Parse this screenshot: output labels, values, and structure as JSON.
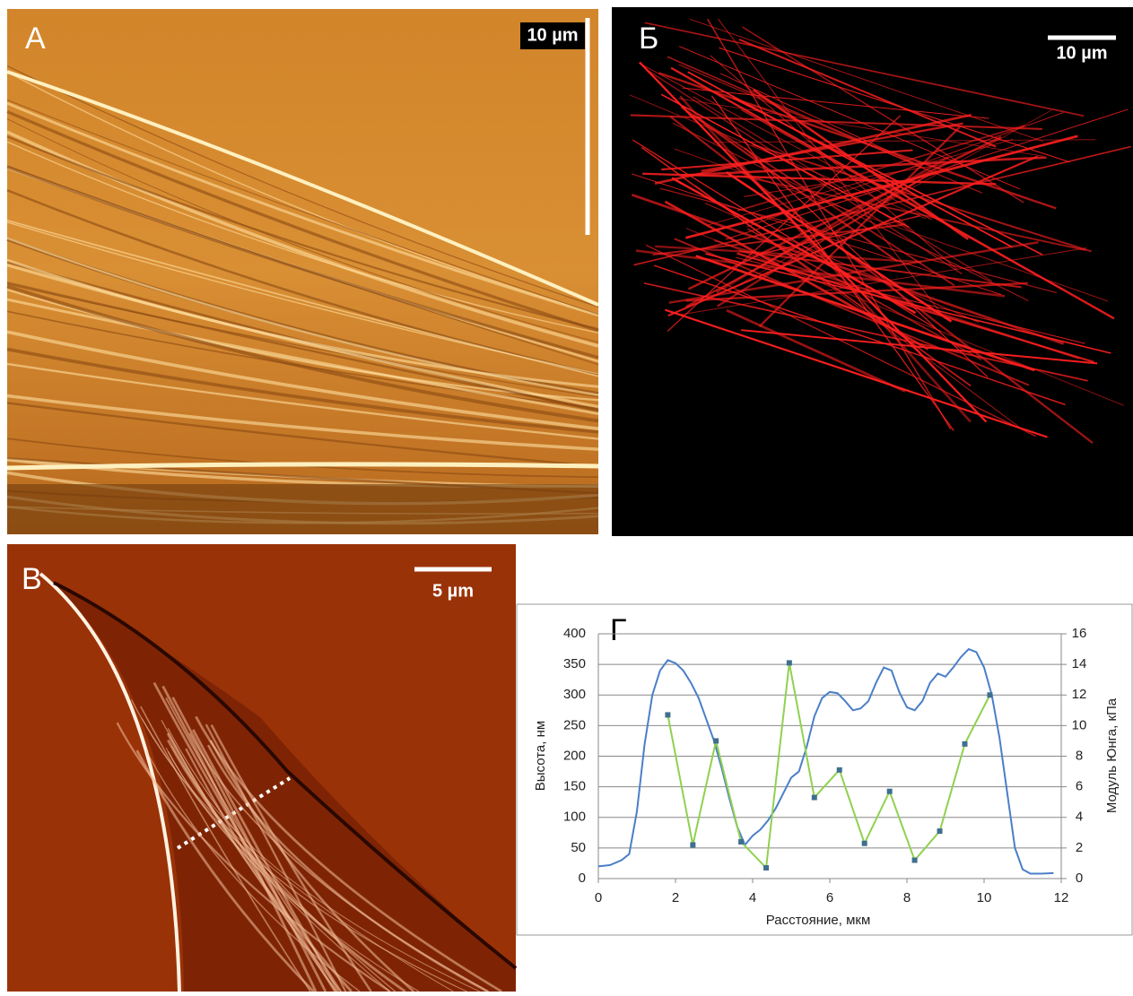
{
  "panels": [
    {
      "label": "А",
      "scale_bar": "10 µm"
    },
    {
      "label": "Б",
      "scale_bar": "10 µm"
    },
    {
      "label": "В",
      "scale_bar": "5 µm"
    }
  ],
  "chart_data": {
    "type": "line",
    "title": "Г",
    "x_label": "Расстояние, мкм",
    "y_label": "Высота, нм",
    "y2_label": "Модуль Юнга, кПа",
    "xlim": [
      0,
      12
    ],
    "xticks": [
      0,
      2,
      4,
      6,
      8,
      10,
      12
    ],
    "ylim": [
      0,
      400
    ],
    "yticks": [
      0,
      50,
      100,
      150,
      200,
      250,
      300,
      350,
      400
    ],
    "y2lim": [
      0,
      16
    ],
    "y2ticks": [
      0,
      2,
      4,
      6,
      8,
      10,
      12,
      14,
      16
    ],
    "grid": true,
    "series": [
      {
        "color": "#4a7fc8",
        "x": [
          0,
          0.3,
          0.6,
          0.8,
          1.0,
          1.2,
          1.4,
          1.6,
          1.8,
          2.0,
          2.2,
          2.4,
          2.6,
          2.8,
          3.0,
          3.2,
          3.4,
          3.6,
          3.8,
          4.0,
          4.2,
          4.4,
          4.6,
          4.8,
          5.0,
          5.2,
          5.4,
          5.6,
          5.8,
          6.0,
          6.2,
          6.4,
          6.6,
          6.8,
          7.0,
          7.2,
          7.4,
          7.6,
          7.8,
          8.0,
          8.2,
          8.4,
          8.6,
          8.8,
          9.0,
          9.2,
          9.4,
          9.6,
          9.8,
          10.0,
          10.2,
          10.4,
          10.6,
          10.8,
          11.0,
          11.2,
          11.5,
          11.8
        ],
        "values": [
          20,
          22,
          30,
          40,
          110,
          220,
          300,
          340,
          357,
          352,
          340,
          320,
          295,
          260,
          225,
          180,
          130,
          85,
          55,
          70,
          80,
          95,
          115,
          140,
          165,
          175,
          215,
          265,
          295,
          305,
          303,
          290,
          275,
          278,
          290,
          320,
          345,
          340,
          305,
          280,
          275,
          290,
          320,
          335,
          330,
          345,
          362,
          375,
          370,
          345,
          300,
          230,
          140,
          50,
          15,
          8,
          8,
          9
        ]
      },
      {
        "color": "#8fd14f",
        "marker_color": "#3f6f8f",
        "axis": "y2",
        "x": [
          1.8,
          2.45,
          3.05,
          3.7,
          4.35,
          4.95,
          5.6,
          6.25,
          6.9,
          7.55,
          8.2,
          8.85,
          9.5,
          10.15
        ],
        "values": [
          10.7,
          2.2,
          9.0,
          2.4,
          0.7,
          14.1,
          5.3,
          7.1,
          2.3,
          5.7,
          1.2,
          3.1,
          8.8,
          12.0
        ]
      }
    ]
  }
}
